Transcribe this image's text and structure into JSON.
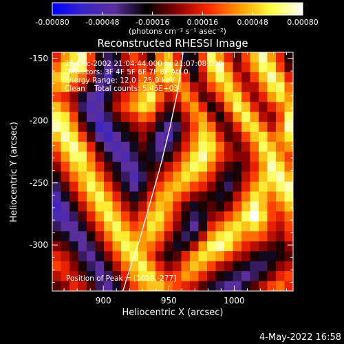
{
  "colorbar": {
    "ticks": [
      "-0.00080",
      "-0.00048",
      "-0.00016",
      "0.00016",
      "0.00048",
      "0.00080"
    ],
    "tick_values": [
      -0.0008,
      -0.00048,
      -0.00016,
      0.00016,
      0.00048,
      0.0008
    ],
    "range": [
      -0.0008,
      0.0008
    ],
    "units_label": "(photons cm⁻² s⁻¹ asec⁻²)",
    "colors": [
      "#0000ff",
      "#3a24c8",
      "#5a2e9c",
      "#000000",
      "#8a0000",
      "#ff2a00",
      "#ff9a00",
      "#ffff40",
      "#ffffff"
    ]
  },
  "chart_data": {
    "type": "heatmap",
    "title": "Reconstructed RHESSI Image",
    "xlabel": "Heliocentric X (arcsec)",
    "ylabel": "Heliocentric Y (arcsec)",
    "xlim": [
      861,
      1045
    ],
    "ylim": [
      -337,
      -145
    ],
    "x_ticks": [
      900,
      950,
      1000
    ],
    "y_ticks": [
      -150,
      -200,
      -250,
      -300
    ],
    "x_tick_labels": [
      "900",
      "950",
      "1000"
    ],
    "y_tick_labels": [
      "-150",
      "-200",
      "-250",
      "-300"
    ],
    "annotations": [
      "25-Dec-2002 21:04:44.000 to 21:07:08.000",
      "Detectors: 3F 4F 5F 6F 7F 8F Att 0",
      "Energy Range: 12.0 - 25.0 keV",
      "Clean    Total counts: 5.45E+03"
    ],
    "peak_label": "Position of Peak = [1019,-277]",
    "peak": [
      1019,
      -277
    ],
    "limb_curve": {
      "x": [
        961,
        957,
        951,
        944,
        936,
        928,
        920,
        915
      ],
      "y": [
        -145,
        -175,
        -205,
        -235,
        -265,
        -295,
        -320,
        -337
      ]
    },
    "heatmap_rows_note_free": true,
    "values": [
      [
        0.2,
        0.5,
        0.7,
        0.9,
        0.3,
        -0.2,
        -0.4,
        -0.3,
        0.1,
        0.3,
        0.1,
        -0.2,
        0.4,
        0.6,
        0.2,
        -0.3,
        -0.2,
        0.3,
        0.8,
        0.5,
        0.2,
        -0.1,
        0.3,
        0.6,
        0.9,
        0.5,
        0.2,
        -0.2
      ],
      [
        0.4,
        0.7,
        0.9,
        0.8,
        0.2,
        -0.3,
        -0.5,
        -0.4,
        0.0,
        0.2,
        0.3,
        0.1,
        0.6,
        0.8,
        0.4,
        -0.1,
        -0.3,
        0.2,
        0.7,
        0.9,
        0.4,
        0.0,
        0.2,
        0.5,
        0.8,
        0.7,
        0.3,
        -0.1
      ],
      [
        0.6,
        0.8,
        0.6,
        0.4,
        0.1,
        -0.4,
        -0.6,
        -0.3,
        -0.1,
        0.1,
        0.4,
        0.3,
        0.5,
        0.7,
        0.6,
        0.2,
        -0.2,
        0.1,
        0.5,
        0.8,
        0.6,
        0.2,
        0.0,
        0.3,
        0.6,
        0.9,
        0.6,
        0.2
      ],
      [
        0.5,
        0.6,
        0.3,
        0.1,
        -0.2,
        -0.5,
        -0.4,
        -0.2,
        0.0,
        0.2,
        0.5,
        0.6,
        0.3,
        0.4,
        0.5,
        0.4,
        0.1,
        0.0,
        0.3,
        0.5,
        0.7,
        0.4,
        0.1,
        0.1,
        0.4,
        0.7,
        0.8,
        0.4
      ],
      [
        0.3,
        0.2,
        0.0,
        -0.3,
        -0.5,
        -0.6,
        -0.3,
        0.0,
        0.2,
        0.4,
        0.6,
        0.8,
        0.4,
        0.1,
        0.2,
        0.5,
        0.3,
        -0.1,
        0.0,
        0.3,
        0.6,
        0.7,
        0.3,
        0.0,
        0.2,
        0.5,
        0.7,
        0.5
      ],
      [
        0.6,
        0.4,
        0.1,
        -0.4,
        -0.6,
        -0.5,
        -0.2,
        0.1,
        0.3,
        0.5,
        0.7,
        0.6,
        0.2,
        -0.1,
        0.0,
        0.3,
        0.5,
        0.2,
        -0.2,
        0.0,
        0.4,
        0.8,
        0.6,
        0.2,
        0.0,
        0.2,
        0.4,
        0.6
      ],
      [
        0.8,
        0.7,
        0.3,
        -0.2,
        -0.5,
        -0.6,
        -0.4,
        -0.1,
        0.1,
        0.2,
        0.4,
        0.3,
        -0.1,
        -0.3,
        -0.2,
        0.1,
        0.4,
        0.5,
        0.1,
        -0.2,
        0.1,
        0.5,
        0.8,
        0.5,
        0.1,
        0.0,
        0.3,
        0.8
      ],
      [
        0.9,
        0.8,
        0.5,
        0.0,
        -0.3,
        -0.7,
        -0.6,
        -0.3,
        -0.2,
        0.0,
        0.1,
        0.0,
        -0.3,
        -0.5,
        -0.4,
        0.0,
        0.3,
        0.6,
        0.4,
        0.0,
        -0.1,
        0.2,
        0.6,
        0.7,
        0.4,
        0.1,
        0.4,
        0.9
      ],
      [
        0.6,
        0.9,
        0.7,
        0.3,
        -0.1,
        -0.5,
        -0.7,
        -0.5,
        -0.3,
        -0.2,
        0.0,
        -0.2,
        -0.5,
        -0.6,
        -0.3,
        0.1,
        0.4,
        0.7,
        0.6,
        0.2,
        -0.1,
        0.0,
        0.3,
        0.6,
        0.7,
        0.4,
        0.5,
        0.7
      ],
      [
        0.4,
        0.7,
        0.9,
        0.6,
        0.2,
        -0.2,
        -0.5,
        -0.6,
        -0.5,
        -0.3,
        -0.1,
        -0.3,
        -0.5,
        -0.4,
        -0.1,
        0.2,
        0.5,
        0.8,
        0.7,
        0.4,
        0.1,
        -0.1,
        0.1,
        0.4,
        0.8,
        0.6,
        0.4,
        0.5
      ],
      [
        0.2,
        0.5,
        0.8,
        0.8,
        0.4,
        0.0,
        -0.3,
        -0.5,
        -0.6,
        -0.4,
        -0.2,
        -0.3,
        -0.4,
        -0.2,
        0.1,
        0.4,
        0.7,
        0.9,
        0.6,
        0.3,
        0.1,
        0.0,
        0.0,
        0.3,
        0.6,
        0.8,
        0.5,
        0.3
      ],
      [
        0.0,
        0.3,
        0.6,
        0.7,
        0.5,
        0.2,
        -0.1,
        -0.3,
        -0.5,
        -0.5,
        -0.3,
        -0.2,
        -0.1,
        0.1,
        0.3,
        0.6,
        0.8,
        0.7,
        0.4,
        0.1,
        -0.1,
        -0.2,
        0.0,
        0.2,
        0.5,
        0.9,
        0.7,
        0.4
      ],
      [
        -0.2,
        0.1,
        0.4,
        0.6,
        0.7,
        0.4,
        0.1,
        -0.2,
        -0.4,
        -0.6,
        -0.4,
        -0.1,
        0.1,
        0.3,
        0.5,
        0.7,
        0.6,
        0.4,
        0.2,
        -0.1,
        -0.3,
        -0.2,
        0.1,
        0.3,
        0.6,
        0.8,
        0.9,
        0.6
      ],
      [
        -0.4,
        -0.1,
        0.2,
        0.5,
        0.8,
        0.6,
        0.3,
        0.0,
        -0.3,
        -0.5,
        -0.3,
        0.0,
        0.3,
        0.5,
        0.6,
        0.5,
        0.3,
        0.2,
        0.0,
        -0.2,
        -0.4,
        -0.1,
        0.2,
        0.5,
        0.7,
        0.6,
        0.8,
        0.9
      ],
      [
        -0.6,
        -0.3,
        0.0,
        0.3,
        0.6,
        0.8,
        0.5,
        0.2,
        -0.1,
        -0.3,
        -0.1,
        0.2,
        0.5,
        0.6,
        0.4,
        0.2,
        0.0,
        -0.1,
        -0.2,
        -0.3,
        -0.2,
        0.1,
        0.4,
        0.7,
        0.6,
        0.4,
        0.6,
        0.8
      ],
      [
        -0.7,
        -0.5,
        -0.2,
        0.1,
        0.4,
        0.7,
        0.7,
        0.4,
        0.1,
        -0.1,
        0.1,
        0.4,
        0.6,
        0.5,
        0.2,
        -0.1,
        -0.3,
        -0.2,
        -0.1,
        -0.2,
        0.0,
        0.3,
        0.6,
        0.9,
        0.6,
        0.3,
        0.4,
        0.6
      ],
      [
        -0.6,
        -0.6,
        -0.4,
        -0.1,
        0.2,
        0.5,
        0.8,
        0.6,
        0.3,
        0.1,
        0.3,
        0.6,
        0.7,
        0.4,
        0.1,
        -0.2,
        -0.4,
        -0.3,
        0.0,
        0.1,
        0.3,
        0.5,
        0.8,
        1.0,
        0.7,
        0.3,
        0.2,
        0.4
      ],
      [
        -0.4,
        -0.5,
        -0.5,
        -0.3,
        0.0,
        0.3,
        0.6,
        0.8,
        0.5,
        0.3,
        0.4,
        0.7,
        0.6,
        0.3,
        0.0,
        -0.3,
        -0.5,
        -0.2,
        0.2,
        0.4,
        0.6,
        0.7,
        0.6,
        0.7,
        0.5,
        0.2,
        0.1,
        0.3
      ],
      [
        -0.2,
        -0.3,
        -0.5,
        -0.5,
        -0.2,
        0.1,
        0.4,
        0.7,
        0.7,
        0.5,
        0.5,
        0.6,
        0.4,
        0.1,
        -0.2,
        -0.4,
        -0.3,
        0.1,
        0.5,
        0.7,
        0.8,
        0.6,
        0.4,
        0.4,
        0.3,
        0.1,
        0.0,
        0.2
      ],
      [
        0.0,
        -0.1,
        -0.3,
        -0.5,
        -0.4,
        -0.1,
        0.2,
        0.5,
        0.8,
        0.7,
        0.5,
        0.4,
        0.2,
        -0.1,
        -0.3,
        -0.2,
        0.1,
        0.5,
        0.8,
        0.9,
        0.7,
        0.4,
        0.2,
        0.1,
        0.0,
        -0.1,
        -0.2,
        0.0
      ],
      [
        0.2,
        0.1,
        -0.1,
        -0.4,
        -0.5,
        -0.3,
        0.0,
        0.3,
        0.6,
        0.8,
        0.6,
        0.3,
        0.0,
        -0.2,
        -0.1,
        0.2,
        0.5,
        0.7,
        0.6,
        0.5,
        0.3,
        0.1,
        0.0,
        -0.2,
        -0.3,
        -0.3,
        -0.2,
        -0.1
      ],
      [
        0.3,
        0.2,
        0.0,
        -0.2,
        -0.4,
        -0.5,
        -0.2,
        0.1,
        0.4,
        0.6,
        0.8,
        0.5,
        0.2,
        0.0,
        0.1,
        0.4,
        0.6,
        0.5,
        0.3,
        0.1,
        0.0,
        -0.2,
        -0.3,
        -0.4,
        -0.4,
        -0.2,
        0.0,
        0.1
      ],
      [
        0.1,
        0.2,
        0.1,
        -0.1,
        -0.3,
        -0.5,
        -0.4,
        -0.1,
        0.2,
        0.5,
        0.7,
        0.7,
        0.4,
        0.2,
        0.3,
        0.5,
        0.4,
        0.2,
        0.0,
        -0.2,
        -0.3,
        -0.4,
        -0.5,
        -0.4,
        -0.2,
        0.0,
        0.2,
        0.3
      ],
      [
        -0.1,
        0.0,
        0.2,
        0.1,
        -0.1,
        -0.4,
        -0.5,
        -0.3,
        0.0,
        0.3,
        0.5,
        0.6,
        0.6,
        0.4,
        0.3,
        0.2,
        0.1,
        -0.1,
        -0.3,
        -0.4,
        -0.5,
        -0.5,
        -0.3,
        -0.1,
        0.1,
        0.3,
        0.4,
        0.2
      ]
    ]
  },
  "footer": {
    "date_stamp": "4-May-2022 16:58"
  }
}
